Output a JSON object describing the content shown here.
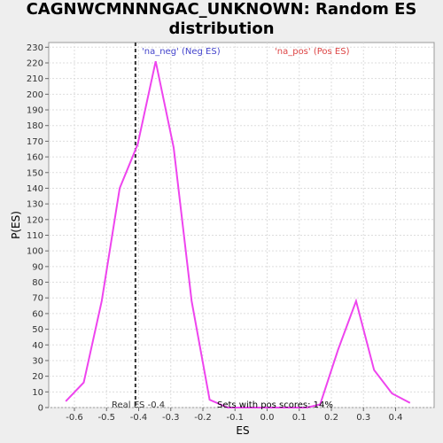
{
  "chart_data": {
    "type": "line",
    "title_line1": "CAGNWCMNNNGAC_UNKNOWN: Random ES",
    "title_line2": "distribution",
    "xlabel": "ES",
    "ylabel": "P(ES)",
    "xlim": [
      -0.68,
      0.52
    ],
    "ylim": [
      0,
      233
    ],
    "x_ticks": [
      -0.6,
      -0.5,
      -0.4,
      -0.3,
      -0.2,
      -0.1,
      0.0,
      0.1,
      0.2,
      0.3,
      0.4
    ],
    "x_tick_labels": [
      "-0.6",
      "-0.5",
      "-0.4",
      "-0.3",
      "-0.2",
      "-0.1",
      "0.0",
      "0.1",
      "0.2",
      "0.3",
      "0.4"
    ],
    "y_ticks": [
      0,
      10,
      20,
      30,
      40,
      50,
      60,
      70,
      80,
      90,
      100,
      110,
      120,
      130,
      140,
      150,
      160,
      170,
      180,
      190,
      200,
      210,
      220,
      230
    ],
    "grid": true,
    "series": [
      {
        "color": "#ee44ee",
        "x": [
          -0.627,
          -0.571,
          -0.515,
          -0.459,
          -0.403,
          -0.347,
          -0.291,
          -0.235,
          -0.179,
          -0.123,
          -0.067,
          0.124,
          0.165,
          0.221,
          0.277,
          0.333,
          0.389,
          0.445
        ],
        "y": [
          4,
          16,
          68,
          140,
          168,
          221,
          166,
          68,
          5,
          0,
          0,
          0,
          2,
          37,
          68,
          24,
          9,
          3
        ]
      }
    ],
    "real_es": -0.41,
    "annotations": {
      "na_neg": "'na_neg' (Neg ES)",
      "na_pos": "'na_pos' (Pos ES)",
      "real_es_label": "Real ES -0.4",
      "pos_scores": "Sets with pos scores: 14%"
    },
    "colors": {
      "neg": "#4444cc",
      "pos": "#dd4444",
      "grid": "#dddddd",
      "real_es_line": "#333333"
    }
  }
}
